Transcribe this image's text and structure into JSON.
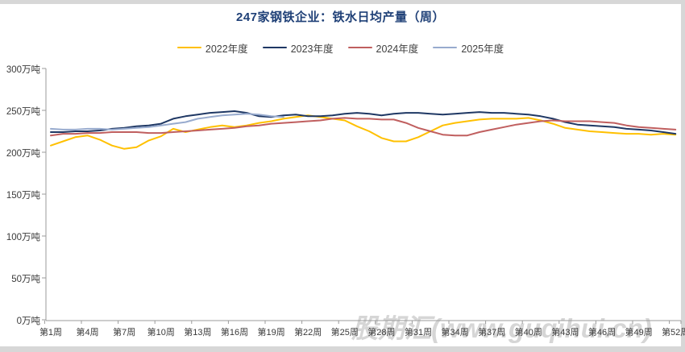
{
  "title": {
    "text": "247家钢铁企业：铁水日均产量（周）",
    "color": "#1f4077"
  },
  "watermark": {
    "text": "股期汇(www.guqihui.cn)"
  },
  "legend": [
    {
      "label": "2022年度",
      "color": "#FFC000"
    },
    {
      "label": "2023年度",
      "color": "#1F3864"
    },
    {
      "label": "2024年度",
      "color": "#C05F5F"
    },
    {
      "label": "2025年度",
      "color": "#98ABCE"
    }
  ],
  "chart_data": {
    "type": "line",
    "title": "247家钢铁企业：铁水日均产量（周）",
    "xlabel": "周",
    "ylabel": "万吨",
    "ylim": [
      0,
      300
    ],
    "y_step": 50,
    "grid": false,
    "legend_position": "top",
    "weeks": 52,
    "x_tick_labels": [
      "第1周",
      "第4周",
      "第7周",
      "第10周",
      "第13周",
      "第16周",
      "第19周",
      "第22周",
      "第25周",
      "第28周",
      "第31周",
      "第34周",
      "第37周",
      "第40周",
      "第43周",
      "第46周",
      "第49周",
      "第52周"
    ],
    "y_tick_labels": [
      "0万吨",
      "50万吨",
      "100万吨",
      "150万吨",
      "200万吨",
      "250万吨",
      "300万吨"
    ],
    "series": [
      {
        "name": "2022年度",
        "color": "#FFC000",
        "values": [
          208,
          213,
          218,
          220,
          215,
          208,
          204,
          206,
          214,
          219,
          228,
          224,
          227,
          230,
          232,
          230,
          232,
          235,
          237,
          240,
          242,
          244,
          242,
          240,
          238,
          231,
          225,
          217,
          213,
          213,
          218,
          225,
          232,
          235,
          237,
          239,
          240,
          240,
          240,
          241,
          238,
          234,
          229,
          227,
          225,
          224,
          223,
          222,
          222,
          221,
          222,
          221
        ]
      },
      {
        "name": "2023年度",
        "color": "#1F3864",
        "values": [
          224,
          224,
          225,
          225,
          226,
          228,
          229,
          231,
          232,
          234,
          240,
          243,
          245,
          247,
          248,
          249,
          247,
          243,
          242,
          244,
          245,
          243,
          243,
          244,
          246,
          247,
          246,
          244,
          246,
          247,
          247,
          246,
          245,
          246,
          247,
          248,
          247,
          247,
          246,
          245,
          243,
          240,
          236,
          233,
          232,
          231,
          230,
          228,
          227,
          226,
          224,
          222
        ]
      },
      {
        "name": "2024年度",
        "color": "#C05F5F",
        "values": [
          220,
          222,
          222,
          223,
          223,
          224,
          224,
          224,
          223,
          223,
          224,
          225,
          226,
          227,
          228,
          229,
          231,
          232,
          234,
          235,
          236,
          237,
          238,
          240,
          241,
          240,
          240,
          239,
          239,
          235,
          229,
          225,
          221,
          220,
          220,
          224,
          227,
          230,
          233,
          235,
          237,
          238,
          237,
          237,
          237,
          236,
          235,
          232,
          230,
          229,
          228,
          227
        ]
      },
      {
        "name": "2025年度",
        "color": "#98ABCE",
        "values": [
          228,
          227,
          227,
          228,
          228,
          227,
          228,
          229,
          230,
          232,
          234,
          236,
          240,
          242,
          244,
          245,
          246,
          245,
          243,
          242
        ]
      }
    ]
  }
}
